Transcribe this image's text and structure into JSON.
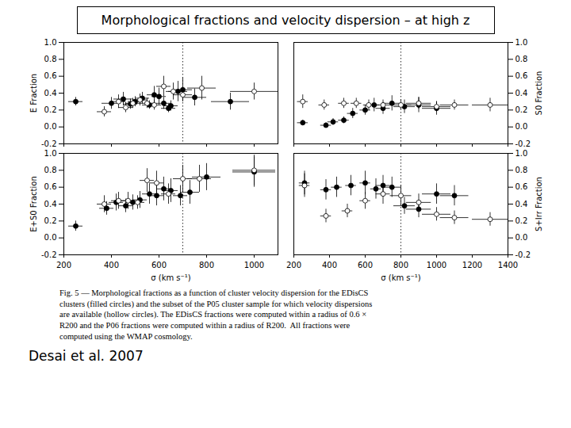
{
  "title": "Morphological fractions and velocity dispersion – at high z",
  "caption": "Fig. 5 — Morphological fractions as a function of cluster velocity dispersion for the EDisCS\nclusters (filled circles) and the subset of the P05 cluster sample for which velocity dispersions\nare available (hollow circles). The EDisCS fractions were computed within a radius of 0.6 ×\nR200 and the P06 fractions were computed within a radius of R200.  All fractions were\ncomputed using the WMAP cosmology.",
  "annotations": [
    "Desai et al. 2007"
  ],
  "chart_data": [
    {
      "type": "scatter",
      "ylabel": "E Fraction",
      "tick_labels": "y",
      "xlim": [
        200,
        1100
      ],
      "xticks": [
        200,
        400,
        600,
        800,
        1000
      ],
      "ylim": [
        -0.2,
        1.0
      ],
      "yticks": [
        -0.2,
        {
          "value": 0,
          "label": "0.0"
        },
        0.2,
        0.4,
        0.6,
        0.8,
        {
          "value": 1,
          "label": "1.0"
        }
      ],
      "vline": {
        "x": 700,
        "line_style": "dotted"
      },
      "series": [
        {
          "marker": "filled_circle",
          "color": "black",
          "x": [
            250,
            400,
            450,
            480,
            500,
            530,
            560,
            580,
            600,
            620,
            640,
            650,
            680,
            700,
            750,
            900
          ],
          "values": [
            0.3,
            0.28,
            0.33,
            0.27,
            0.3,
            0.34,
            0.26,
            0.38,
            0.36,
            0.28,
            0.22,
            0.25,
            0.42,
            0.44,
            0.35,
            0.3
          ],
          "xerr": [
            30,
            40,
            40,
            30,
            30,
            30,
            30,
            30,
            30,
            30,
            30,
            30,
            40,
            40,
            50,
            80
          ],
          "yerr": [
            0.05,
            0.07,
            0.08,
            0.06,
            0.06,
            0.07,
            0.05,
            0.1,
            0.1,
            0.07,
            0.05,
            0.06,
            0.12,
            0.14,
            0.1,
            0.1
          ]
        },
        {
          "marker": "hollow_circle",
          "color": "black",
          "x": [
            370,
            430,
            460,
            490,
            520,
            550,
            580,
            620,
            660,
            700,
            780,
            1000
          ],
          "values": [
            0.18,
            0.3,
            0.23,
            0.28,
            0.32,
            0.28,
            0.26,
            0.48,
            0.42,
            0.38,
            0.46,
            0.42
          ],
          "xerr": [
            30,
            30,
            30,
            30,
            30,
            30,
            30,
            30,
            30,
            40,
            60,
            100
          ],
          "yerr": [
            0.06,
            0.08,
            0.06,
            0.06,
            0.07,
            0.06,
            0.06,
            0.12,
            0.1,
            0.08,
            0.14,
            0.1
          ]
        }
      ]
    },
    {
      "type": "scatter",
      "ylabel": "S0 Fraction",
      "tick_labels": "y",
      "xlim": [
        200,
        1400
      ],
      "xticks": [
        200,
        400,
        600,
        800,
        1000,
        1200,
        1400
      ],
      "ylim": [
        -0.2,
        1.0
      ],
      "yticks": [
        -0.2,
        {
          "value": 0,
          "label": "0.0"
        },
        0.2,
        0.4,
        0.6,
        0.8,
        {
          "value": 1,
          "label": "1.0"
        }
      ],
      "vline": {
        "x": 800,
        "line_style": "dotted"
      },
      "series": [
        {
          "marker": "filled_circle",
          "color": "black",
          "x": [
            250,
            380,
            420,
            480,
            530,
            600,
            650,
            700,
            750,
            820,
            900,
            1000
          ],
          "values": [
            0.05,
            0.02,
            0.06,
            0.08,
            0.16,
            0.2,
            0.26,
            0.22,
            0.28,
            0.24,
            0.26,
            0.22
          ],
          "xerr": [
            30,
            30,
            30,
            30,
            30,
            30,
            30,
            40,
            50,
            60,
            70,
            80
          ],
          "yerr": [
            0.03,
            0.03,
            0.04,
            0.04,
            0.06,
            0.06,
            0.08,
            0.07,
            0.09,
            0.08,
            0.09,
            0.08
          ]
        },
        {
          "marker": "hollow_circle",
          "color": "black",
          "x": [
            250,
            370,
            480,
            550,
            620,
            700,
            800,
            900,
            1000,
            1100,
            1300
          ],
          "values": [
            0.3,
            0.26,
            0.28,
            0.28,
            0.26,
            0.26,
            0.26,
            0.28,
            0.24,
            0.26,
            0.26
          ],
          "xerr": [
            30,
            30,
            30,
            30,
            30,
            40,
            60,
            70,
            80,
            80,
            100
          ],
          "yerr": [
            0.08,
            0.06,
            0.06,
            0.06,
            0.06,
            0.06,
            0.06,
            0.07,
            0.06,
            0.06,
            0.08
          ]
        }
      ]
    },
    {
      "type": "scatter",
      "ylabel": "E+S0 Fraction",
      "xlabel": "σ (km s⁻¹)",
      "xlim": [
        200,
        1100
      ],
      "xticks": [
        200,
        400,
        600,
        800,
        1000
      ],
      "ylim": [
        -0.2,
        1.0
      ],
      "yticks": [
        -0.2,
        {
          "value": 0,
          "label": "0.0"
        },
        0.2,
        0.4,
        0.6,
        0.8,
        {
          "value": 1,
          "label": "1.0"
        }
      ],
      "vline": {
        "x": 700,
        "line_style": "dotted"
      },
      "series": [
        {
          "marker": "filled_circle",
          "color": "black",
          "x": [
            250,
            380,
            420,
            460,
            490,
            520,
            560,
            590,
            620,
            650,
            690,
            730,
            800,
            1000
          ],
          "values": [
            0.14,
            0.35,
            0.42,
            0.38,
            0.42,
            0.45,
            0.52,
            0.5,
            0.58,
            0.56,
            0.5,
            0.54,
            0.72,
            0.78
          ],
          "xerr": [
            30,
            30,
            30,
            30,
            30,
            30,
            30,
            30,
            30,
            30,
            30,
            40,
            60,
            90
          ],
          "yerr": [
            0.06,
            0.08,
            0.1,
            0.08,
            0.09,
            0.1,
            0.12,
            0.12,
            0.14,
            0.14,
            0.12,
            0.14,
            0.16,
            0.18
          ]
        },
        {
          "marker": "hollow_circle",
          "color": "black",
          "x": [
            370,
            430,
            470,
            510,
            550,
            590,
            640,
            700,
            770,
            1000
          ],
          "values": [
            0.4,
            0.44,
            0.44,
            0.42,
            0.68,
            0.65,
            0.52,
            0.7,
            0.7,
            0.8
          ],
          "xerr": [
            30,
            30,
            30,
            30,
            30,
            30,
            30,
            40,
            50,
            90
          ],
          "yerr": [
            0.1,
            0.1,
            0.1,
            0.08,
            0.14,
            0.14,
            0.12,
            0.16,
            0.16,
            0.18
          ]
        }
      ]
    },
    {
      "type": "scatter",
      "ylabel": "S+Irr Fraction",
      "xlabel": "σ (km s⁻¹)",
      "xlim": [
        200,
        1400
      ],
      "xticks": [
        200,
        400,
        600,
        800,
        1000,
        1200,
        1400
      ],
      "ylim": [
        -0.2,
        1.0
      ],
      "yticks": [
        -0.2,
        {
          "value": 0,
          "label": "0.0"
        },
        0.2,
        0.4,
        0.6,
        0.8,
        {
          "value": 1,
          "label": "1.0"
        }
      ],
      "vline": {
        "x": 800,
        "line_style": "dotted"
      },
      "series": [
        {
          "marker": "filled_circle",
          "color": "black",
          "x": [
            260,
            380,
            440,
            520,
            600,
            660,
            700,
            750,
            820,
            900,
            1000,
            1100
          ],
          "values": [
            0.65,
            0.57,
            0.6,
            0.62,
            0.65,
            0.58,
            0.62,
            0.6,
            0.38,
            0.34,
            0.52,
            0.5
          ],
          "xerr": [
            30,
            30,
            30,
            30,
            30,
            30,
            40,
            50,
            60,
            70,
            80,
            80
          ],
          "yerr": [
            0.14,
            0.12,
            0.12,
            0.12,
            0.14,
            0.12,
            0.12,
            0.12,
            0.1,
            0.1,
            0.12,
            0.12
          ]
        },
        {
          "marker": "hollow_circle",
          "color": "black",
          "x": [
            260,
            380,
            500,
            600,
            700,
            800,
            900,
            1000,
            1100,
            1300
          ],
          "values": [
            0.62,
            0.26,
            0.32,
            0.44,
            0.52,
            0.5,
            0.42,
            0.28,
            0.24,
            0.22
          ],
          "xerr": [
            30,
            30,
            30,
            30,
            40,
            60,
            70,
            80,
            80,
            100
          ],
          "yerr": [
            0.14,
            0.08,
            0.08,
            0.1,
            0.12,
            0.12,
            0.1,
            0.08,
            0.08,
            0.08
          ]
        }
      ]
    }
  ]
}
